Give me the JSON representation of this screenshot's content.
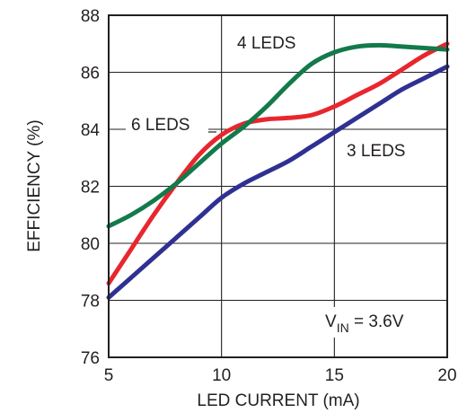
{
  "chart_data": {
    "type": "line",
    "xlabel": "LED CURRENT (mA)",
    "ylabel": "EFFICIENCY (%)",
    "xlim": [
      5,
      20
    ],
    "ylim": [
      76,
      88
    ],
    "xticks": [
      "5",
      "10",
      "15",
      "20"
    ],
    "yticks": [
      "76",
      "78",
      "80",
      "82",
      "84",
      "86",
      "88"
    ],
    "grid": true,
    "series": [
      {
        "name": "4 LEDS",
        "color": "#137a4a",
        "x": [
          5,
          6,
          7,
          8,
          9,
          10,
          11,
          12,
          13,
          14,
          15,
          16,
          17,
          18,
          19,
          20
        ],
        "y": [
          80.6,
          81.0,
          81.5,
          82.1,
          82.8,
          83.5,
          84.1,
          84.8,
          85.6,
          86.3,
          86.7,
          86.9,
          86.95,
          86.9,
          86.85,
          86.8
        ]
      },
      {
        "name": "6 LEDS",
        "color": "#e8262d",
        "x": [
          5,
          6,
          7,
          8,
          9,
          10,
          11,
          12,
          13,
          14,
          15,
          16,
          17,
          18,
          19,
          20
        ],
        "y": [
          78.6,
          79.8,
          81.0,
          82.1,
          83.1,
          83.8,
          84.2,
          84.35,
          84.4,
          84.5,
          84.8,
          85.2,
          85.6,
          86.1,
          86.6,
          87.0
        ]
      },
      {
        "name": "3 LEDS",
        "color": "#2e3192",
        "x": [
          5,
          6,
          7,
          8,
          9,
          10,
          11,
          12,
          13,
          14,
          15,
          16,
          17,
          18,
          19,
          20
        ],
        "y": [
          78.1,
          78.8,
          79.5,
          80.2,
          80.9,
          81.6,
          82.1,
          82.5,
          82.9,
          83.4,
          83.9,
          84.4,
          84.9,
          85.4,
          85.8,
          86.2
        ]
      }
    ],
    "annotations": [
      {
        "name": "vin-annotation",
        "main": "V",
        "sub": "IN",
        "rest": " = 3.6V"
      }
    ]
  }
}
